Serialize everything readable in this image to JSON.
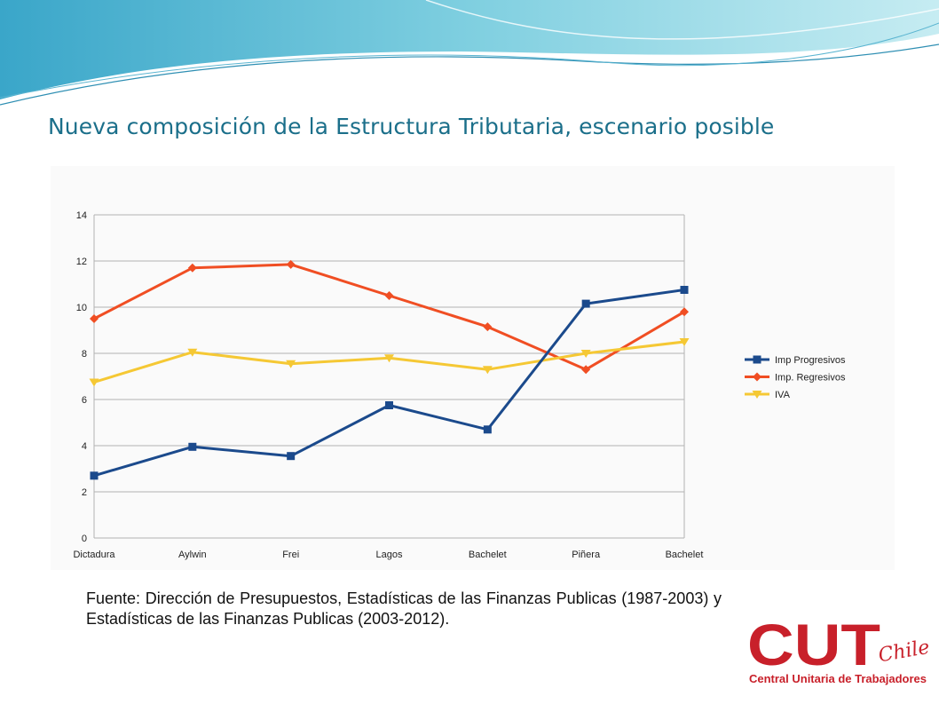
{
  "slide": {
    "title": "Nueva composición de la Estructura Tributaria, escenario posible",
    "source_note": "Fuente: Dirección de Presupuestos, Estadísticas de  las Finanzas Publicas (1987-2003) y Estadísticas de las Finanzas Publicas (2003-2012).",
    "logo": {
      "main": "CUT",
      "script": "Chile",
      "subtitle": "Central Unitaria de Trabajadores",
      "color": "#c8202a"
    }
  },
  "chart_data": {
    "type": "line",
    "categories": [
      "Dictadura",
      "Aylwin",
      "Frei",
      "Lagos",
      "Bachelet",
      "Piñera",
      "Bachelet"
    ],
    "series": [
      {
        "name": "Imp Progresivos",
        "values": [
          2.7,
          3.95,
          3.55,
          5.75,
          4.7,
          10.15,
          10.75
        ],
        "color": "#1b4a8c",
        "marker": "square"
      },
      {
        "name": "Imp. Regresivos",
        "values": [
          9.5,
          11.7,
          11.85,
          10.5,
          9.15,
          7.3,
          9.8
        ],
        "color": "#f04e23",
        "marker": "diamond"
      },
      {
        "name": "IVA",
        "values": [
          6.75,
          8.05,
          7.55,
          7.8,
          7.3,
          8.0,
          8.5
        ],
        "color": "#f5c834",
        "marker": "triangle-down"
      }
    ],
    "ylim": [
      0,
      14
    ],
    "yticks": [
      0,
      2,
      4,
      6,
      8,
      10,
      12,
      14
    ],
    "grid": true,
    "legend_position": "right"
  }
}
